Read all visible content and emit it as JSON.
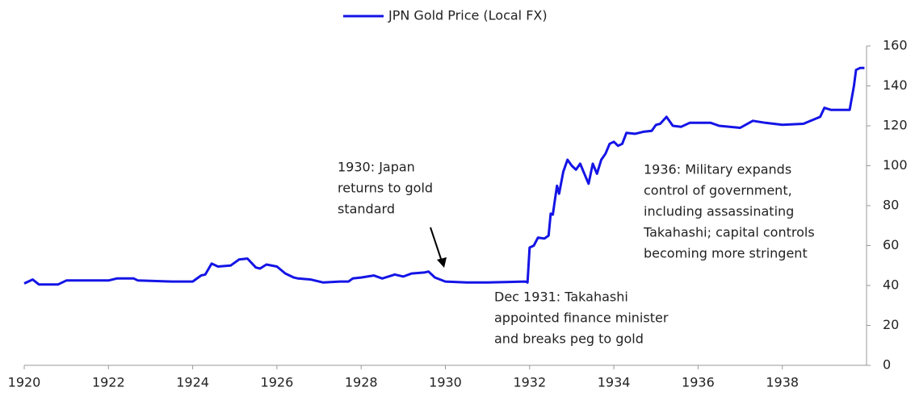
{
  "chart_data": {
    "type": "line",
    "legend": "JPN Gold Price (Local FX)",
    "color": "#1414e6",
    "x": [
      1920.0,
      1920.2,
      1920.35,
      1920.8,
      1921.0,
      1922.0,
      1922.2,
      1922.6,
      1922.7,
      1923.5,
      1924.0,
      1924.2,
      1924.3,
      1924.45,
      1924.6,
      1924.9,
      1925.1,
      1925.3,
      1925.5,
      1925.6,
      1925.75,
      1926.0,
      1926.2,
      1926.4,
      1926.5,
      1926.8,
      1927.1,
      1927.5,
      1927.7,
      1927.8,
      1928.0,
      1928.3,
      1928.5,
      1928.8,
      1929.0,
      1929.2,
      1929.5,
      1929.6,
      1929.75,
      1930.0,
      1930.5,
      1931.0,
      1931.9,
      1931.95,
      1932.0,
      1932.1,
      1932.2,
      1932.35,
      1932.45,
      1932.5,
      1932.55,
      1932.65,
      1932.7,
      1932.8,
      1932.9,
      1933.0,
      1933.1,
      1933.2,
      1933.3,
      1933.4,
      1933.5,
      1933.6,
      1933.7,
      1933.8,
      1933.9,
      1934.0,
      1934.1,
      1934.2,
      1934.3,
      1934.5,
      1934.7,
      1934.9,
      1935.0,
      1935.1,
      1935.25,
      1935.4,
      1935.6,
      1935.8,
      1936.0,
      1936.3,
      1936.5,
      1937.0,
      1937.3,
      1937.6,
      1938.0,
      1938.5,
      1938.9,
      1939.0,
      1939.15,
      1939.6,
      1939.7,
      1939.75,
      1939.85,
      1939.95
    ],
    "values": [
      41,
      43,
      40.5,
      40.5,
      42.5,
      42.5,
      43.5,
      43.5,
      42.5,
      42,
      42,
      45,
      45.5,
      51,
      49.5,
      50,
      53,
      53.5,
      49,
      48.5,
      50.5,
      49.5,
      46,
      44,
      43.5,
      43,
      41.5,
      42,
      42,
      43.5,
      44,
      45,
      43.5,
      45.5,
      44.5,
      46,
      46.5,
      47,
      44,
      42,
      41.5,
      41.5,
      42,
      41.5,
      59,
      60,
      64,
      63.5,
      65,
      76,
      75.5,
      90,
      86,
      97,
      103,
      100,
      98,
      101,
      96,
      91,
      101,
      96,
      103,
      106,
      111,
      112,
      110,
      111,
      116.5,
      116,
      117,
      117.5,
      120.5,
      121,
      124.5,
      120,
      119.5,
      121.5,
      121.5,
      121.5,
      120,
      119,
      122.5,
      121.5,
      120.5,
      121,
      124.5,
      129,
      128,
      128,
      140,
      148,
      149,
      149
    ],
    "xlim": [
      1920,
      1940
    ],
    "xticks": [
      1920,
      1922,
      1924,
      1926,
      1928,
      1930,
      1932,
      1934,
      1936,
      1938
    ],
    "ylim": [
      0,
      160
    ],
    "yticks": [
      0,
      20,
      40,
      60,
      80,
      100,
      120,
      140,
      160
    ],
    "annotations": [
      [
        "1930: Japan",
        "returns to gold",
        "standard"
      ],
      [
        "Dec 1931: Takahashi",
        "appointed finance minister",
        "and breaks peg to gold"
      ],
      [
        "1936: Military expands",
        "control of government,",
        "including assassinating",
        "Takahashi; capital controls",
        "becoming more stringent"
      ]
    ]
  }
}
